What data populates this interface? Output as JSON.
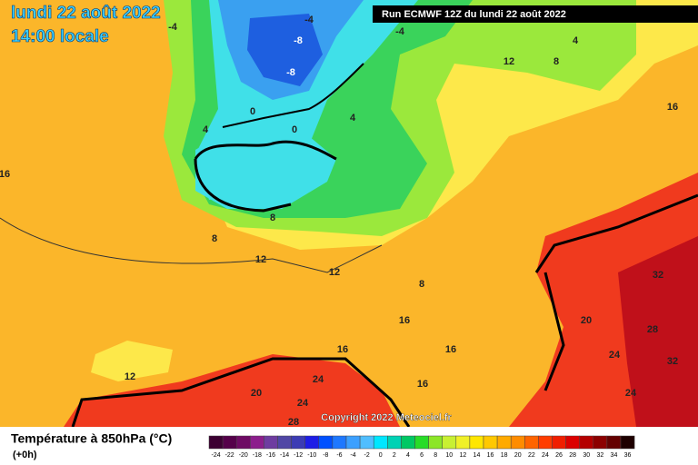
{
  "header": {
    "date": "lundi 22 août 2022",
    "time": "14:00 locale",
    "run": "Run ECMWF 12Z du lundi 22 août 2022"
  },
  "copyright": "Copyright 2022 Meteociel.fr",
  "map": {
    "labels": [
      "-4",
      "-4",
      "-4",
      "-8",
      "-8",
      "0",
      "0",
      "4",
      "4",
      "4",
      "12",
      "8",
      "16",
      "16",
      "8",
      "8",
      "12",
      "12",
      "8",
      "16",
      "32",
      "20",
      "28",
      "16",
      "16",
      "24",
      "32",
      "12",
      "24",
      "16",
      "20",
      "24",
      "24",
      "28"
    ]
  },
  "legend": {
    "title": "Température à 850hPa (°C)",
    "subtitle": "(+0h)",
    "scale": [
      {
        "value": -24,
        "color": "#3c0032"
      },
      {
        "value": -22,
        "color": "#55004a"
      },
      {
        "value": -20,
        "color": "#6e0a64"
      },
      {
        "value": -18,
        "color": "#8c1e8c"
      },
      {
        "value": -16,
        "color": "#6e3ca0"
      },
      {
        "value": -14,
        "color": "#5046a5"
      },
      {
        "value": -12,
        "color": "#3c3cb4"
      },
      {
        "value": -10,
        "color": "#1e1ee6"
      },
      {
        "value": -8,
        "color": "#0050ff"
      },
      {
        "value": -6,
        "color": "#1e78ff"
      },
      {
        "value": -4,
        "color": "#3ca0ff"
      },
      {
        "value": -2,
        "color": "#50beff"
      },
      {
        "value": 0,
        "color": "#00e6ff"
      },
      {
        "value": 2,
        "color": "#00d2b4"
      },
      {
        "value": 4,
        "color": "#00c864"
      },
      {
        "value": 6,
        "color": "#28dc28"
      },
      {
        "value": 8,
        "color": "#8ce628"
      },
      {
        "value": 10,
        "color": "#c8f032"
      },
      {
        "value": 12,
        "color": "#f0f028"
      },
      {
        "value": 14,
        "color": "#ffe600"
      },
      {
        "value": 16,
        "color": "#ffc800"
      },
      {
        "value": 18,
        "color": "#ffaa00"
      },
      {
        "value": 20,
        "color": "#ff8c00"
      },
      {
        "value": 22,
        "color": "#ff6400"
      },
      {
        "value": 24,
        "color": "#ff3c00"
      },
      {
        "value": 26,
        "color": "#f01e00"
      },
      {
        "value": 28,
        "color": "#dc0000"
      },
      {
        "value": 30,
        "color": "#b40000"
      },
      {
        "value": 32,
        "color": "#8c0000"
      },
      {
        "value": 34,
        "color": "#640000"
      },
      {
        "value": 36,
        "color": "#1e0000"
      }
    ]
  }
}
